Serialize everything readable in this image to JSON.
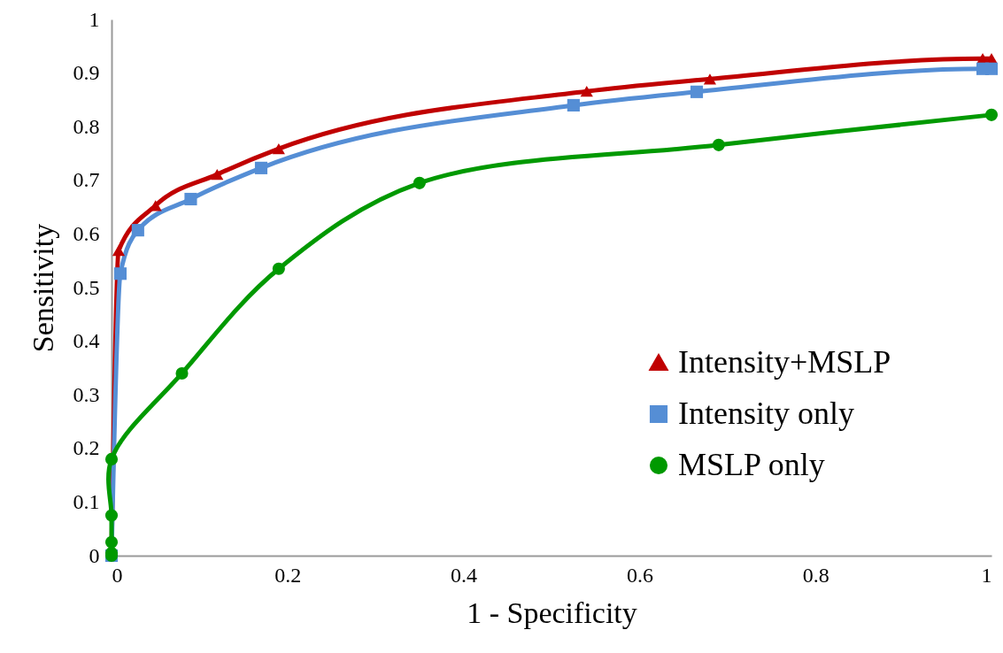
{
  "chart_data": {
    "type": "line",
    "xlabel": "1 - Specificity",
    "ylabel": "Sensitivity",
    "xlim": [
      0,
      1
    ],
    "xticks": [
      0,
      0.2,
      0.4,
      0.6,
      0.8,
      1
    ],
    "ylim": [
      0,
      1
    ],
    "yticks": [
      0,
      0.1,
      0.2,
      0.3,
      0.4,
      0.5,
      0.6,
      0.7,
      0.8,
      0.9,
      1
    ],
    "grid": false,
    "legend": "right",
    "line_style": "solid",
    "series": [
      {
        "name": "Intensity+MSLP",
        "color": "#c00000",
        "marker": "triangle",
        "x": [
          0,
          0.008,
          0.05,
          0.12,
          0.19,
          0.54,
          0.68,
          0.99,
          1
        ],
        "values": [
          0,
          0.569,
          0.653,
          0.711,
          0.759,
          0.866,
          0.889,
          0.927,
          0.927
        ]
      },
      {
        "name": "Intensity only",
        "color": "#558ed5",
        "marker": "square",
        "x": [
          0,
          0.01,
          0.03,
          0.09,
          0.17,
          0.525,
          0.665,
          0.99,
          1
        ],
        "values": [
          0,
          0.526,
          0.607,
          0.665,
          0.723,
          0.84,
          0.865,
          0.908,
          0.908
        ]
      },
      {
        "name": "MSLP only",
        "color": "#009900",
        "marker": "circle",
        "x": [
          0,
          0,
          0,
          0,
          0,
          0.08,
          0.19,
          0.35,
          0.69,
          1
        ],
        "values": [
          0,
          0.005,
          0.025,
          0.075,
          0.18,
          0.34,
          0.535,
          0.695,
          0.766,
          0.822
        ]
      }
    ]
  }
}
